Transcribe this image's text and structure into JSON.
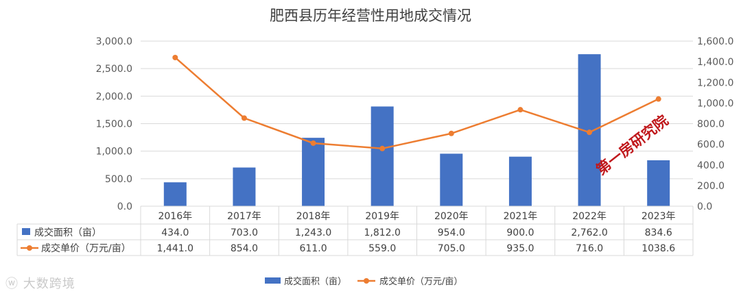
{
  "chart_data": {
    "type": "bar",
    "title": "肥西县历年经营性用地成交情况",
    "categories": [
      "2016年",
      "2017年",
      "2018年",
      "2019年",
      "2020年",
      "2021年",
      "2022年",
      "2023年"
    ],
    "series": [
      {
        "name": "成交面积（亩）",
        "kind": "bar",
        "axis": "left",
        "color": "#4472C4",
        "values": [
          434.0,
          703.0,
          1243.0,
          1812.0,
          954.0,
          900.0,
          2762.0,
          834.6
        ],
        "labels": [
          "434.0",
          "703.0",
          "1,243.0",
          "1,812.0",
          "954.0",
          "900.0",
          "2,762.0",
          "834.6"
        ]
      },
      {
        "name": "成交单价（万元/亩）",
        "kind": "line",
        "axis": "right",
        "color": "#ED7D31",
        "values": [
          1441.0,
          854.0,
          611.0,
          559.0,
          705.0,
          935.0,
          716.0,
          1038.6
        ],
        "labels": [
          "1,441.0",
          "854.0",
          "611.0",
          "559.0",
          "705.0",
          "935.0",
          "716.0",
          "1038.6"
        ]
      }
    ],
    "ylim_left": [
      0,
      3000
    ],
    "ylim_right": [
      0,
      1600
    ],
    "yticks_left": [
      "0.0",
      "500.0",
      "1,000.0",
      "1,500.0",
      "2,000.0",
      "2,500.0",
      "3,000.0"
    ],
    "yticks_right": [
      "0.0",
      "200.0",
      "400.0",
      "600.0",
      "800.0",
      "1,000.0",
      "1,200.0",
      "1,400.0",
      "1,600.0"
    ],
    "grid": true,
    "legend_position": "bottom"
  },
  "watermark_text": "大数跨境",
  "stamp_text": "第一房研究院"
}
